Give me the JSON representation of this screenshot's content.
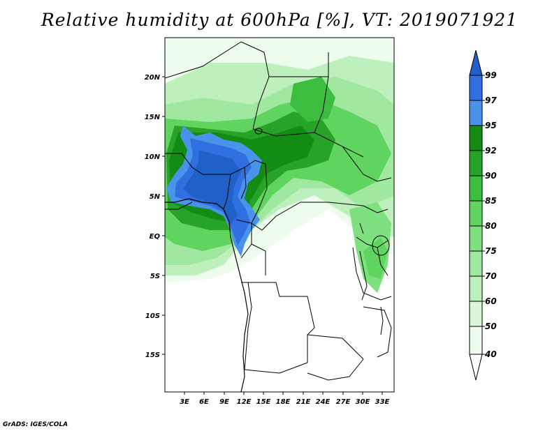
{
  "title": "Relative humidity at 600hPa [%], VT: 2019071921",
  "credit": "GrADS: IGES/COLA",
  "map": {
    "lat_labels": [
      "20N",
      "15N",
      "10N",
      "5N",
      "EQ",
      "5S",
      "10S",
      "15S"
    ],
    "lon_labels": [
      "3E",
      "6E",
      "9E",
      "12E",
      "15E",
      "18E",
      "21E",
      "24E",
      "27E",
      "30E",
      "33E"
    ]
  },
  "colorbar": {
    "levels": [
      "99",
      "97",
      "95",
      "92",
      "90",
      "85",
      "80",
      "75",
      "70",
      "60",
      "50",
      "40"
    ],
    "colors": {
      "above_99": "#2060c8",
      "97_99": "#2f6fe0",
      "95_97": "#4a93ea",
      "92_95": "#128c12",
      "90_92": "#27a427",
      "85_90": "#3dbd3d",
      "80_85": "#5fd45f",
      "75_80": "#7fe07f",
      "70_75": "#a0e8a0",
      "60_70": "#bdf0bd",
      "50_60": "#d9f7d9",
      "40_50": "#eefcee",
      "below_40": "#ffffff"
    }
  }
}
